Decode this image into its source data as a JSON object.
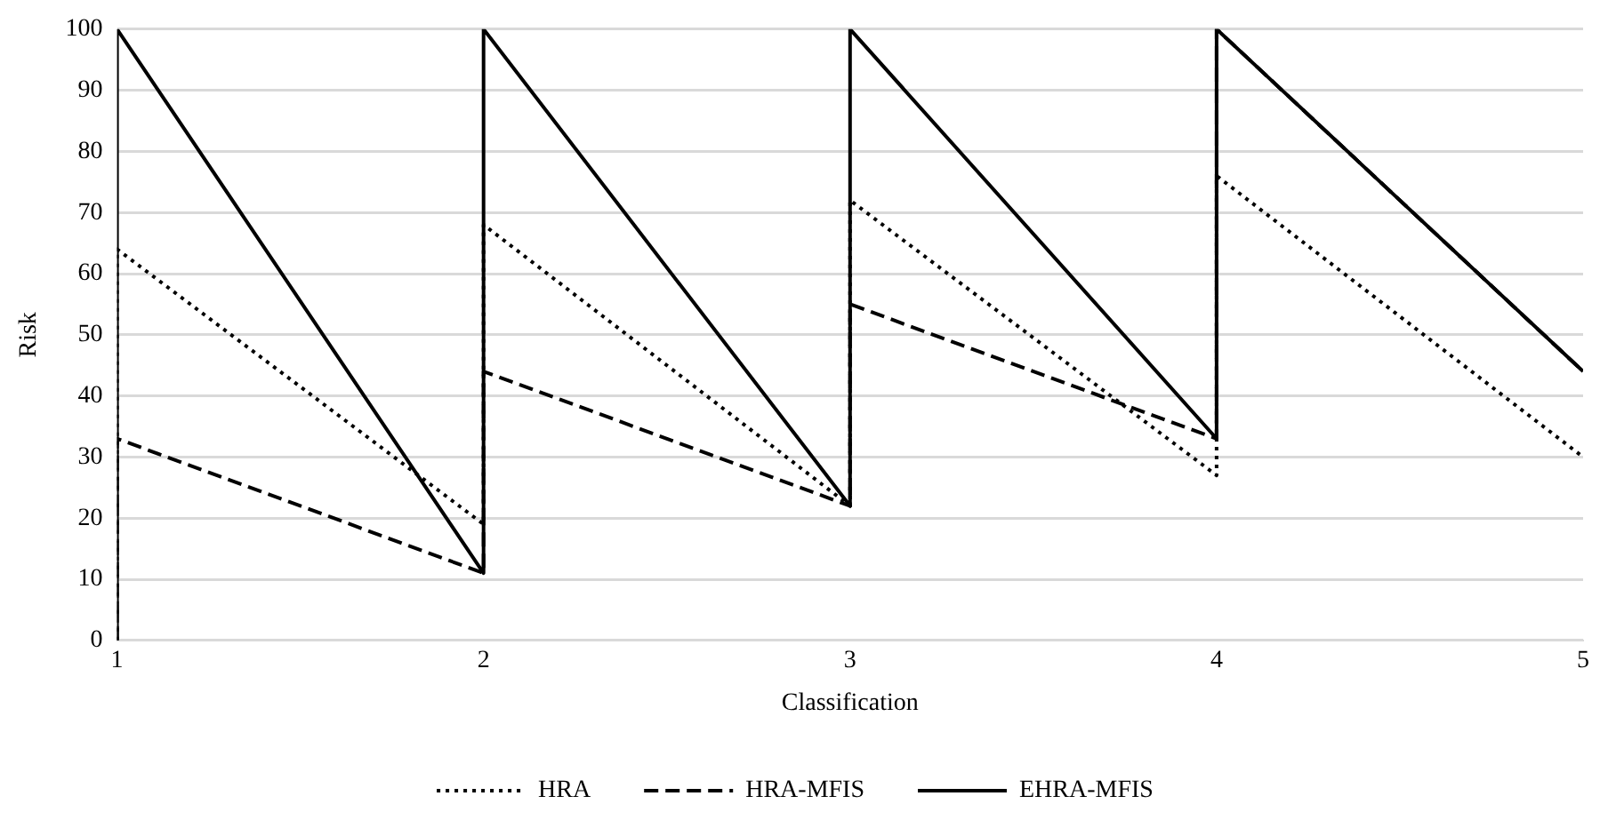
{
  "chart_data": {
    "type": "line",
    "xlabel": "Classification",
    "ylabel": "Risk",
    "x": [
      1,
      1,
      2,
      2,
      3,
      3,
      4,
      4,
      5
    ],
    "series": [
      {
        "name": "HRA",
        "color": "#000000",
        "line_style": "dotted",
        "values": [
          0,
          64,
          19,
          68,
          22,
          72,
          27,
          76,
          30
        ]
      },
      {
        "name": "HRA-MFIS",
        "color": "#000000",
        "line_style": "dashed",
        "values": [
          0,
          33,
          11,
          44,
          22,
          55,
          33,
          100,
          44
        ]
      },
      {
        "name": "EHRA-MFIS",
        "color": "#000000",
        "line_style": "solid",
        "values": [
          0,
          100,
          11,
          100,
          22,
          100,
          33,
          100,
          44
        ]
      }
    ],
    "xlim": [
      1,
      5
    ],
    "xticks": [
      1,
      2,
      3,
      4,
      5
    ],
    "ylim": [
      0,
      100
    ],
    "yticks": [
      0,
      10,
      20,
      30,
      40,
      50,
      60,
      70,
      80,
      90,
      100
    ],
    "grid": "y",
    "legend": "bottom",
    "marker": "none"
  }
}
